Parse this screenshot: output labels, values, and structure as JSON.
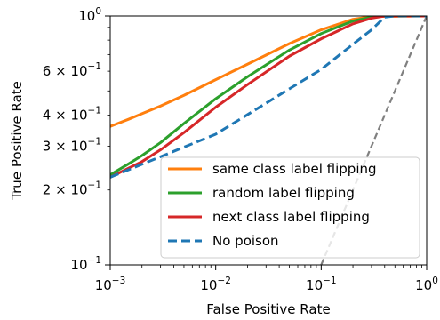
{
  "chart_data": {
    "type": "line",
    "xlabel": "False Positive Rate",
    "ylabel": "True Positive Rate",
    "xscale": "log",
    "yscale": "log",
    "xlim": [
      0.001,
      1
    ],
    "ylim": [
      0.1,
      1
    ],
    "grid": false,
    "legend_position": "lower-right",
    "x_ticks": [
      {
        "value": 0.001,
        "base": "10",
        "exp": "−3"
      },
      {
        "value": 0.01,
        "base": "10",
        "exp": "−2"
      },
      {
        "value": 0.1,
        "base": "10",
        "exp": "−1"
      },
      {
        "value": 1,
        "base": "10",
        "exp": "0"
      }
    ],
    "y_ticks": [
      {
        "value": 0.1,
        "mant": "",
        "base": "10",
        "exp": "−1"
      },
      {
        "value": 0.2,
        "mant": "2 × ",
        "base": "10",
        "exp": "−1"
      },
      {
        "value": 0.3,
        "mant": "3 × ",
        "base": "10",
        "exp": "−1"
      },
      {
        "value": 0.4,
        "mant": "4 × ",
        "base": "10",
        "exp": "−1"
      },
      {
        "value": 0.6,
        "mant": "6 × ",
        "base": "10",
        "exp": "−1"
      },
      {
        "value": 1,
        "mant": "",
        "base": "10",
        "exp": "0"
      }
    ],
    "series": [
      {
        "name": "same class label flipping",
        "color": "#ff7f0e",
        "dash": "solid",
        "x": [
          0.001,
          0.0015,
          0.002,
          0.003,
          0.005,
          0.01,
          0.02,
          0.05,
          0.1,
          0.2,
          0.3,
          1.0
        ],
        "y": [
          0.36,
          0.385,
          0.405,
          0.435,
          0.48,
          0.555,
          0.64,
          0.775,
          0.88,
          0.97,
          0.995,
          1.0
        ]
      },
      {
        "name": "random label flipping",
        "color": "#2ca02c",
        "dash": "solid",
        "x": [
          0.001,
          0.0015,
          0.002,
          0.003,
          0.005,
          0.01,
          0.02,
          0.05,
          0.1,
          0.2,
          0.3,
          0.4,
          1.0
        ],
        "y": [
          0.23,
          0.255,
          0.275,
          0.31,
          0.37,
          0.465,
          0.57,
          0.73,
          0.85,
          0.955,
          0.99,
          1.0,
          1.0
        ]
      },
      {
        "name": "next class label flipping",
        "color": "#d62728",
        "dash": "solid",
        "x": [
          0.001,
          0.0015,
          0.002,
          0.003,
          0.005,
          0.01,
          0.02,
          0.05,
          0.1,
          0.2,
          0.3,
          0.4,
          1.0
        ],
        "y": [
          0.225,
          0.245,
          0.26,
          0.29,
          0.34,
          0.43,
          0.53,
          0.69,
          0.81,
          0.93,
          0.98,
          1.0,
          1.0
        ]
      },
      {
        "name": "No poison",
        "color": "#1f77b4",
        "dash": "dashed",
        "x": [
          0.001,
          0.01,
          0.05,
          0.1,
          0.2,
          0.3,
          0.4,
          0.5,
          1.0
        ],
        "y": [
          0.225,
          0.335,
          0.51,
          0.61,
          0.77,
          0.88,
          0.99,
          1.0,
          1.0
        ]
      }
    ],
    "reference_line": {
      "color": "#808080",
      "dash": "dashed",
      "x": [
        0.1,
        1.0
      ],
      "y": [
        0.1,
        1.0
      ]
    }
  }
}
